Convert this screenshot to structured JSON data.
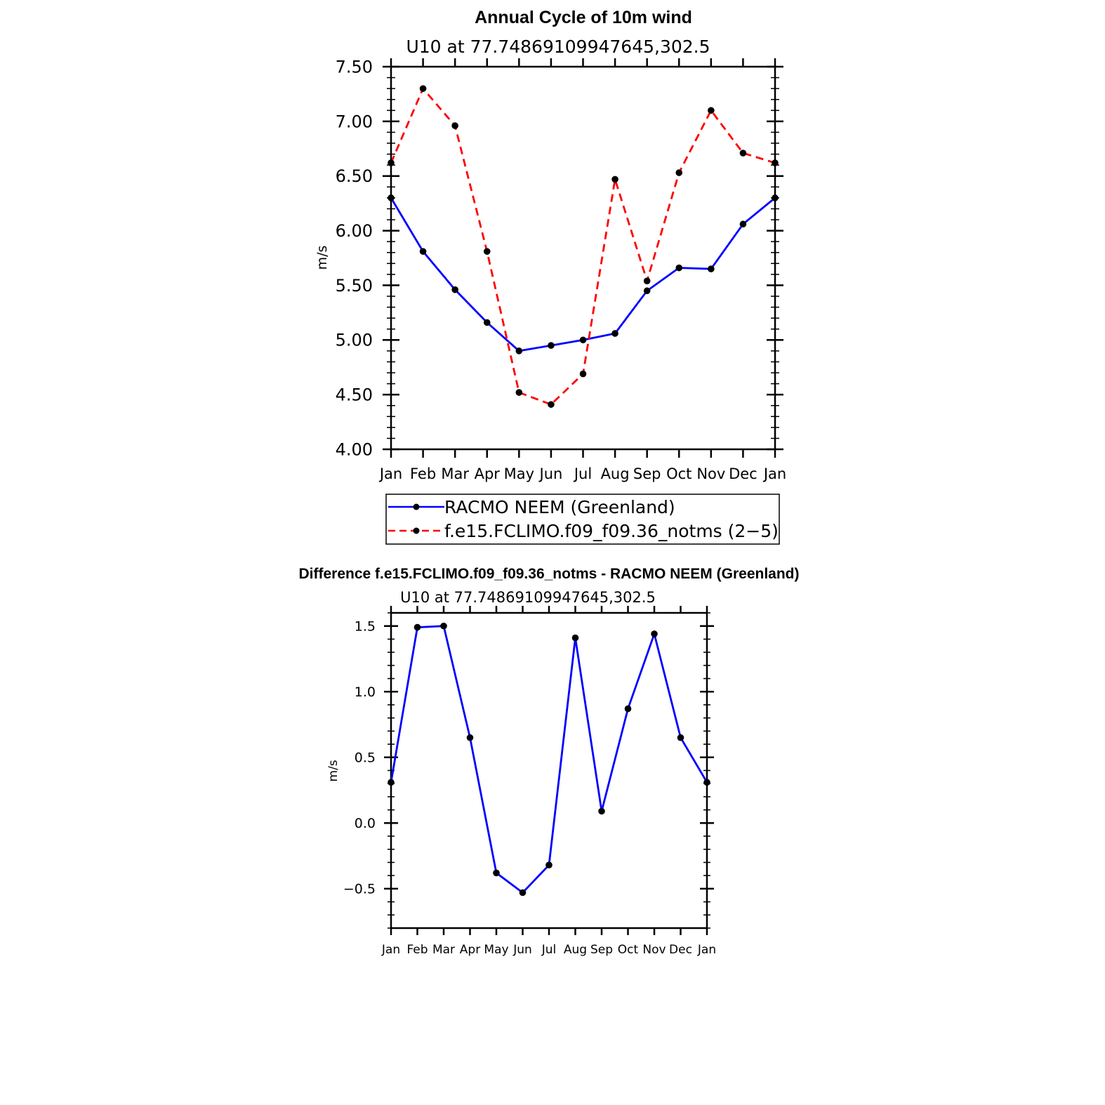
{
  "chart_data": [
    {
      "type": "line",
      "title": "Annual Cycle of 10m wind",
      "subtitle": "U10 at 77.74869109947645,302.5",
      "xlabel": "",
      "ylabel": "m/s",
      "categories": [
        "Jan",
        "Feb",
        "Mar",
        "Apr",
        "May",
        "Jun",
        "Jul",
        "Aug",
        "Sep",
        "Oct",
        "Nov",
        "Dec",
        "Jan"
      ],
      "ylim": [
        4.0,
        7.5
      ],
      "yticks": [
        "4.00",
        "4.50",
        "5.00",
        "5.50",
        "6.00",
        "6.50",
        "7.00",
        "7.50"
      ],
      "grid": false,
      "legend_position": "bottom",
      "series": [
        {
          "name": "RACMO NEEM (Greenland)",
          "color": "#0000ff",
          "style": "solid",
          "values": [
            6.3,
            5.81,
            5.46,
            5.16,
            4.9,
            4.95,
            5.0,
            5.06,
            5.45,
            5.66,
            5.65,
            6.06,
            6.3
          ]
        },
        {
          "name": "f.e15.FCLIMO.f09_f09.36_notms (2−5)",
          "color": "#ff0000",
          "style": "dashed",
          "values": [
            6.62,
            7.3,
            6.96,
            5.81,
            4.52,
            4.41,
            4.69,
            6.47,
            5.54,
            6.53,
            7.1,
            6.71,
            6.62
          ]
        }
      ]
    },
    {
      "type": "line",
      "title": "Difference f.e15.FCLIMO.f09_f09.36_notms - RACMO NEEM (Greenland)",
      "subtitle": "U10 at 77.74869109947645,302.5",
      "xlabel": "",
      "ylabel": "m/s",
      "categories": [
        "Jan",
        "Feb",
        "Mar",
        "Apr",
        "May",
        "Jun",
        "Jul",
        "Aug",
        "Sep",
        "Oct",
        "Nov",
        "Dec",
        "Jan"
      ],
      "ylim": [
        -0.8,
        1.6
      ],
      "yticks": [
        "−0.5",
        "0.0",
        "0.5",
        "1.0",
        "1.5"
      ],
      "ytick_values": [
        -0.5,
        0.0,
        0.5,
        1.0,
        1.5
      ],
      "grid": false,
      "series": [
        {
          "color": "#0000ff",
          "style": "solid",
          "values": [
            0.31,
            1.49,
            1.5,
            0.65,
            -0.38,
            -0.53,
            -0.32,
            1.41,
            0.09,
            0.87,
            1.44,
            0.65,
            0.31
          ]
        }
      ]
    }
  ]
}
